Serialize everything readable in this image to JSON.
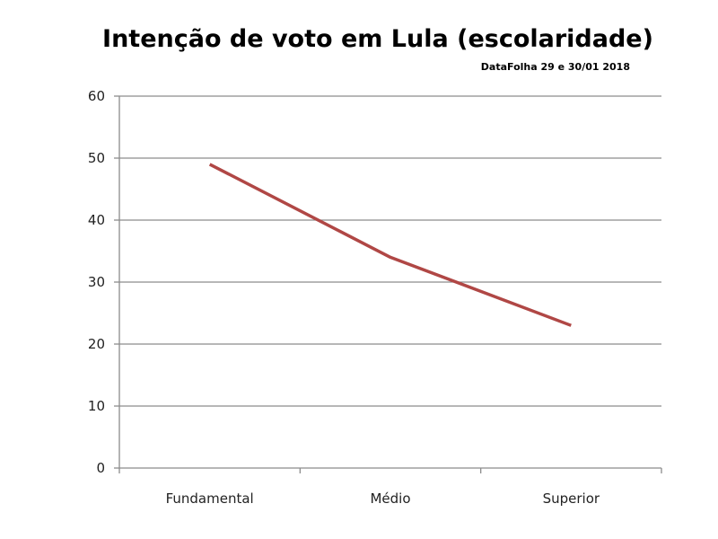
{
  "chart_data": {
    "type": "line",
    "title": "Intenção de voto em Lula (escolaridade)",
    "subtitle": "DataFolha 29 e 30/01 2018",
    "xlabel": "",
    "ylabel": "",
    "categories": [
      "Fundamental",
      "Médio",
      "Superior"
    ],
    "series": [
      {
        "values": [
          49,
          34,
          23
        ],
        "color": "#b04745"
      }
    ],
    "ylim": [
      0,
      60
    ],
    "yticks": [
      0,
      10,
      20,
      30,
      40,
      50,
      60
    ],
    "grid": true,
    "legend": "none",
    "colors": {
      "grid": "#8c8c8c",
      "axis": "#8c8c8c"
    }
  }
}
